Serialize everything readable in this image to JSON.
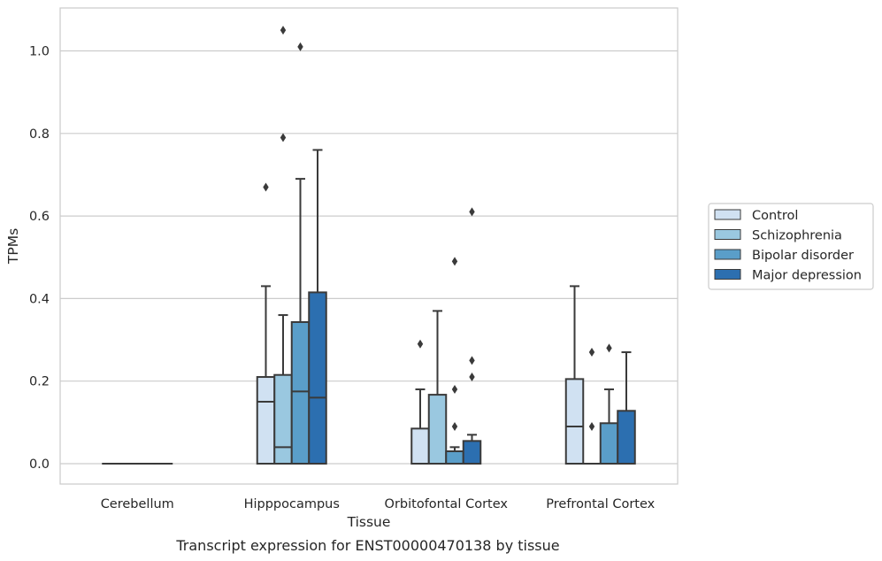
{
  "chart_data": {
    "type": "box",
    "xlabel": "Tissue",
    "ylabel": "TPMs",
    "caption": "Transcript expression for ENST00000470138 by tissue",
    "ylim": [
      -0.05,
      1.1
    ],
    "yticks": [
      0.0,
      0.2,
      0.4,
      0.6,
      0.8,
      1.0
    ],
    "ytick_labels": [
      "0.0",
      "0.2",
      "0.4",
      "0.6",
      "0.8",
      "1.0"
    ],
    "grid": "horizontal",
    "legend_position": "right",
    "categories": [
      "Cerebellum",
      "Hipppocampus",
      "Orbitofontal Cortex",
      "Prefrontal Cortex"
    ],
    "series": [
      {
        "name": "Control",
        "color": "#d0e1f2",
        "boxes": [
          {
            "q1": 0.0,
            "median": 0.0,
            "q3": 0.0,
            "whisker_low": 0.0,
            "whisker_high": 0.0,
            "outliers": []
          },
          {
            "q1": 0.0,
            "median": 0.15,
            "q3": 0.21,
            "whisker_low": 0.0,
            "whisker_high": 0.43,
            "outliers": [
              0.67
            ]
          },
          {
            "q1": 0.0,
            "median": 0.0,
            "q3": 0.085,
            "whisker_low": 0.0,
            "whisker_high": 0.18,
            "outliers": [
              0.29
            ]
          },
          {
            "q1": 0.0,
            "median": 0.09,
            "q3": 0.205,
            "whisker_low": 0.0,
            "whisker_high": 0.43,
            "outliers": []
          }
        ]
      },
      {
        "name": "Schizophrenia",
        "color": "#9ac8e0",
        "boxes": [
          {
            "q1": 0.0,
            "median": 0.0,
            "q3": 0.0,
            "whisker_low": 0.0,
            "whisker_high": 0.0,
            "outliers": []
          },
          {
            "q1": 0.0,
            "median": 0.04,
            "q3": 0.215,
            "whisker_low": 0.0,
            "whisker_high": 0.36,
            "outliers": [
              0.79,
              1.05
            ]
          },
          {
            "q1": 0.0,
            "median": 0.0,
            "q3": 0.167,
            "whisker_low": 0.0,
            "whisker_high": 0.37,
            "outliers": []
          },
          {
            "q1": 0.0,
            "median": 0.0,
            "q3": 0.0,
            "whisker_low": 0.0,
            "whisker_high": 0.0,
            "outliers": [
              0.09,
              0.27
            ]
          }
        ]
      },
      {
        "name": "Bipolar disorder",
        "color": "#5a9ec9",
        "boxes": [
          {
            "q1": 0.0,
            "median": 0.0,
            "q3": 0.0,
            "whisker_low": 0.0,
            "whisker_high": 0.0,
            "outliers": []
          },
          {
            "q1": 0.0,
            "median": 0.175,
            "q3": 0.343,
            "whisker_low": 0.0,
            "whisker_high": 0.69,
            "outliers": [
              1.01
            ]
          },
          {
            "q1": 0.0,
            "median": 0.03,
            "q3": 0.03,
            "whisker_low": 0.0,
            "whisker_high": 0.04,
            "outliers": [
              0.09,
              0.18,
              0.49
            ]
          },
          {
            "q1": 0.0,
            "median": 0.0,
            "q3": 0.098,
            "whisker_low": 0.0,
            "whisker_high": 0.18,
            "outliers": [
              0.28
            ]
          }
        ]
      },
      {
        "name": "Major depression",
        "color": "#2c6fb0",
        "boxes": [
          {
            "q1": 0.0,
            "median": 0.0,
            "q3": 0.0,
            "whisker_low": 0.0,
            "whisker_high": 0.0,
            "outliers": []
          },
          {
            "q1": 0.0,
            "median": 0.16,
            "q3": 0.415,
            "whisker_low": 0.0,
            "whisker_high": 0.76,
            "outliers": []
          },
          {
            "q1": 0.0,
            "median": 0.0,
            "q3": 0.055,
            "whisker_low": 0.0,
            "whisker_high": 0.07,
            "outliers": [
              0.21,
              0.25,
              0.61
            ]
          },
          {
            "q1": 0.0,
            "median": 0.0,
            "q3": 0.128,
            "whisker_low": 0.0,
            "whisker_high": 0.27,
            "outliers": []
          }
        ]
      }
    ]
  }
}
